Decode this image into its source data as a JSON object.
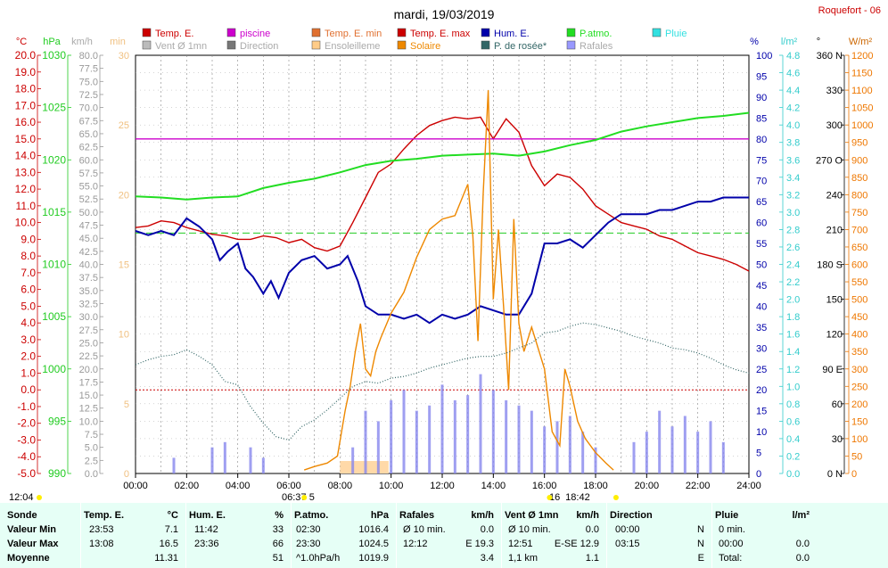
{
  "title": "mardi, 19/03/2019",
  "station": "Roquefort - 06",
  "legend": [
    {
      "label": "Temp. E.",
      "color": "#cc0000",
      "style": "box"
    },
    {
      "label": "piscine",
      "color": "#cc00cc",
      "style": "box"
    },
    {
      "label": "Temp. E. min",
      "color": "#e07030",
      "style": "box"
    },
    {
      "label": "Temp. E. max",
      "color": "#cc0000",
      "style": "box"
    },
    {
      "label": "Hum. E.",
      "color": "#0000aa",
      "style": "box"
    },
    {
      "label": "P.atmo.",
      "color": "#22dd22",
      "style": "box"
    },
    {
      "label": "Pluie",
      "color": "#33e0e0",
      "style": "box"
    },
    {
      "label": "Vent Ø 1mn",
      "color": "#bbbbbb",
      "style": "grey"
    },
    {
      "label": "Direction",
      "color": "#777777",
      "style": "grey"
    },
    {
      "label": "Ensoleilleme",
      "color": "#ffcc88",
      "style": "grey"
    },
    {
      "label": "Solaire",
      "color": "#ee8800",
      "style": "box"
    },
    {
      "label": "P. de rosée*",
      "color": "#336666",
      "style": "box"
    },
    {
      "label": "Rafales",
      "color": "#9999ff",
      "style": "grey"
    }
  ],
  "axes_units": {
    "temp": "°C",
    "pressure": "hPa",
    "wind": "km/h",
    "minutes": "min",
    "pct": "%",
    "rain": "l/m²",
    "dir": "°",
    "solar": "W/m²"
  },
  "axes_labels": {
    "temp": [
      "20.0",
      "19.0",
      "18.0",
      "17.0",
      "16.0",
      "15.0",
      "14.0",
      "13.0",
      "12.0",
      "11.0",
      "10.0",
      "9.0",
      "8.0",
      "7.0",
      "6.0",
      "5.0",
      "4.0",
      "3.0",
      "2.0",
      "1.0",
      "0.0",
      "-1.0",
      "-2.0",
      "-3.0",
      "-4.0",
      "-5.0"
    ],
    "pressure": [
      "1030",
      "1025",
      "1020",
      "1015",
      "1010",
      "1005",
      "1000",
      "995",
      "990"
    ],
    "wind": [
      "80.0",
      "77.5",
      "75.0",
      "72.5",
      "70.0",
      "67.5",
      "65.0",
      "62.5",
      "60.0",
      "57.5",
      "55.0",
      "52.5",
      "50.0",
      "47.5",
      "45.0",
      "42.5",
      "40.0",
      "37.5",
      "35.0",
      "32.5",
      "30.0",
      "27.5",
      "25.0",
      "22.5",
      "20.0",
      "17.5",
      "15.0",
      "12.5",
      "10.0",
      "7.5",
      "5.0",
      "2.5",
      "0.0"
    ],
    "minutes": [
      "30",
      "25",
      "20",
      "15",
      "10",
      "5",
      "0"
    ],
    "pct": [
      "100",
      "95",
      "90",
      "85",
      "80",
      "75",
      "70",
      "65",
      "60",
      "55",
      "50",
      "45",
      "40",
      "35",
      "30",
      "25",
      "20",
      "15",
      "10",
      "5",
      "0"
    ],
    "rain": [
      "4.8",
      "4.6",
      "4.4",
      "4.2",
      "4.0",
      "3.8",
      "3.6",
      "3.4",
      "3.2",
      "3.0",
      "2.8",
      "2.6",
      "2.4",
      "2.2",
      "2.0",
      "1.8",
      "1.6",
      "1.4",
      "1.2",
      "1.0",
      "0.8",
      "0.6",
      "0.4",
      "0.2",
      "0.0"
    ],
    "dir": [
      "360 N",
      "330",
      "300",
      "270 O",
      "240",
      "210",
      "180 S",
      "150",
      "120",
      "90 E",
      "60",
      "30",
      "0 N"
    ],
    "solar": [
      "1200",
      "1150",
      "1100",
      "1050",
      "1000",
      "950",
      "900",
      "850",
      "800",
      "750",
      "700",
      "650",
      "600",
      "550",
      "500",
      "450",
      "400",
      "350",
      "300",
      "250",
      "200",
      "150",
      "100",
      "50",
      "0"
    ]
  },
  "x_ticks": [
    "00:00",
    "02:00",
    "04:00",
    "06:00",
    "08:00",
    "10:00",
    "12:00",
    "14:00",
    "16:00",
    "18:00",
    "20:00",
    "22:00",
    "24:00"
  ],
  "sun_labels": {
    "sunrise_left": "12:04",
    "sunrise": "06:37",
    "sunset_left": "16",
    "sunset": "18:42",
    "mid": "5"
  },
  "chart_data": {
    "type": "line",
    "x_unit": "hour",
    "xlim": [
      0,
      24
    ],
    "series": [
      {
        "name": "Temp. E.",
        "axis": "temp",
        "color": "#cc0000",
        "x": [
          0,
          0.5,
          1,
          1.5,
          2,
          2.5,
          3,
          3.5,
          4,
          4.5,
          5,
          5.5,
          6,
          6.5,
          7,
          7.5,
          8,
          8.5,
          9,
          9.5,
          10,
          10.5,
          11,
          11.5,
          12,
          12.5,
          13,
          13.5,
          14,
          14.5,
          15,
          15.5,
          16,
          16.5,
          17,
          17.5,
          18,
          18.5,
          19,
          19.5,
          20,
          20.5,
          21,
          21.5,
          22,
          22.5,
          23,
          23.5,
          24
        ],
        "y": [
          9.7,
          9.8,
          10.1,
          10.0,
          9.7,
          9.5,
          9.3,
          9.2,
          9.0,
          9.0,
          9.2,
          9.1,
          8.8,
          9.0,
          8.5,
          8.3,
          8.6,
          10.0,
          11.5,
          13.0,
          13.5,
          14.4,
          15.2,
          15.8,
          16.1,
          16.3,
          16.2,
          16.3,
          15.0,
          16.2,
          15.4,
          13.4,
          12.2,
          12.9,
          12.7,
          12.0,
          11.0,
          10.5,
          10.0,
          9.8,
          9.6,
          9.2,
          9.0,
          8.6,
          8.2,
          8.0,
          7.8,
          7.5,
          7.1
        ]
      },
      {
        "name": "piscine",
        "axis": "minutes",
        "color": "#cc00cc",
        "x": [
          0,
          24
        ],
        "y": [
          24,
          24
        ]
      },
      {
        "name": "P.atmo.",
        "axis": "pressure",
        "color": "#22dd22",
        "x": [
          0,
          1,
          2,
          3,
          4,
          5,
          6,
          7,
          8,
          9,
          10,
          11,
          12,
          13,
          14,
          15,
          16,
          17,
          18,
          19,
          20,
          21,
          22,
          23,
          24
        ],
        "y": [
          1016.5,
          1016.4,
          1016.2,
          1016.4,
          1016.5,
          1017.3,
          1017.8,
          1018.2,
          1018.8,
          1019.5,
          1019.9,
          1020.1,
          1020.4,
          1020.5,
          1020.6,
          1020.4,
          1020.8,
          1021.4,
          1021.9,
          1022.7,
          1023.2,
          1023.6,
          1024.0,
          1024.2,
          1024.5
        ]
      },
      {
        "name": "Hum. E.",
        "axis": "pct",
        "color": "#0000aa",
        "x": [
          0,
          0.5,
          1,
          1.5,
          2,
          2.5,
          3,
          3.3,
          3.6,
          4,
          4.3,
          4.6,
          5,
          5.3,
          5.6,
          6,
          6.5,
          7,
          7.5,
          8,
          8.3,
          8.7,
          9,
          9.5,
          10,
          10.5,
          11,
          11.5,
          12,
          12.5,
          13,
          13.5,
          14,
          14.5,
          15,
          15.5,
          16,
          16.5,
          17,
          17.5,
          18,
          18.5,
          19,
          19.5,
          20,
          20.5,
          21,
          21.5,
          22,
          22.5,
          23,
          23.5,
          24
        ],
        "y": [
          58,
          57,
          58,
          57,
          61,
          59,
          56,
          51,
          53,
          55,
          49,
          47,
          43,
          46,
          42,
          48,
          51,
          52,
          49,
          50,
          52,
          46,
          40,
          38,
          38,
          37,
          38,
          36,
          38,
          37,
          38,
          40,
          39,
          38,
          38,
          43,
          55,
          55,
          56,
          54,
          57,
          60,
          62,
          62,
          62,
          63,
          63,
          64,
          65,
          65,
          66,
          66,
          66
        ]
      },
      {
        "name": "Solaire",
        "axis": "solar",
        "color": "#ee8800",
        "x": [
          6.6,
          7.0,
          7.5,
          7.9,
          8.2,
          8.4,
          8.6,
          8.8,
          9.0,
          9.2,
          9.4,
          9.6,
          10.0,
          10.5,
          11.0,
          11.5,
          12.0,
          12.5,
          13.0,
          13.2,
          13.4,
          13.6,
          13.8,
          14.0,
          14.2,
          14.4,
          14.6,
          14.8,
          15.0,
          15.2,
          15.5,
          16.0,
          16.3,
          16.6,
          16.8,
          17.0,
          17.3,
          17.6,
          18.0,
          18.4,
          18.7
        ],
        "y": [
          10,
          20,
          30,
          50,
          180,
          250,
          350,
          430,
          300,
          280,
          350,
          390,
          460,
          520,
          620,
          700,
          730,
          740,
          830,
          680,
          380,
          800,
          1100,
          500,
          700,
          480,
          240,
          730,
          430,
          350,
          420,
          300,
          120,
          80,
          300,
          250,
          150,
          100,
          60,
          30,
          10
        ]
      },
      {
        "name": "P. de rosée*",
        "axis": "temp",
        "color": "#336666",
        "x": [
          0,
          0.5,
          1,
          1.5,
          2,
          2.5,
          3,
          3.5,
          4,
          4.5,
          5,
          5.5,
          6,
          6.5,
          7,
          7.5,
          8,
          8.5,
          9,
          9.5,
          10,
          10.5,
          11,
          11.5,
          12,
          12.5,
          13,
          13.5,
          14,
          14.5,
          15,
          15.5,
          16,
          16.5,
          17,
          17.5,
          18,
          18.5,
          19,
          19.5,
          20,
          20.5,
          21,
          21.5,
          22,
          22.5,
          23,
          23.5,
          24
        ],
        "y": [
          1.5,
          1.8,
          2.0,
          2.1,
          2.4,
          2.0,
          1.5,
          0.5,
          0.3,
          -1.0,
          -2.0,
          -2.8,
          -3.0,
          -2.2,
          -1.8,
          -1.2,
          -0.5,
          0.2,
          0.5,
          0.4,
          0.7,
          0.8,
          1.0,
          1.3,
          1.5,
          1.7,
          1.9,
          2.0,
          2.0,
          2.2,
          2.5,
          2.8,
          3.4,
          3.5,
          3.8,
          4.0,
          3.9,
          3.7,
          3.5,
          3.2,
          3.0,
          2.8,
          2.5,
          2.4,
          2.2,
          1.9,
          1.5,
          1.2,
          1.0
        ]
      }
    ],
    "gusts": {
      "name": "Rafales",
      "axis": "wind",
      "color": "#8888ee",
      "x": [
        1.5,
        3,
        3.5,
        4.5,
        5,
        8.5,
        9,
        9.5,
        10,
        10.5,
        11,
        11.5,
        12,
        12.5,
        13,
        13.5,
        14,
        14.5,
        15,
        15.5,
        16,
        16.5,
        17,
        17.5,
        18,
        19.5,
        20,
        20.5,
        21,
        21.5,
        22,
        22.5,
        23
      ],
      "y": [
        3,
        5,
        6,
        5,
        3,
        5,
        12,
        10,
        14,
        16,
        12,
        13,
        17,
        14,
        15,
        19,
        16,
        14,
        13,
        12,
        9,
        10,
        11,
        8,
        5,
        6,
        8,
        12,
        9,
        11,
        8,
        10,
        6
      ]
    },
    "ylim": {
      "temp": [
        -5,
        20
      ],
      "pressure": [
        990,
        1030
      ],
      "wind": [
        0,
        80
      ],
      "pct": [
        0,
        100
      ],
      "solar": [
        0,
        1200
      ]
    },
    "grid": true
  },
  "summary": {
    "headers": {
      "sonde": "Sonde",
      "temp": "Temp. E.",
      "temp_u": "°C",
      "hum": "Hum. E.",
      "hum_u": "%",
      "pat": "P.atmo.",
      "pat_u": "hPa",
      "raf": "Rafales",
      "raf_u": "km/h",
      "vent": "Vent Ø 1mn",
      "vent_u": "km/h",
      "dir": "Direction",
      "pluie": "Pluie",
      "pluie_u": "l/m²"
    },
    "rows": [
      {
        "label": "Valeur Min",
        "temp_t": "23:53",
        "temp_v": "7.1",
        "hum_t": "11:42",
        "hum_v": "33",
        "pat_t": "02:30",
        "pat_v": "1016.4",
        "raf_t": "Ø 10 min.",
        "raf_v": "0.0",
        "vent_t": "Ø 10 min.",
        "vent_v": "0.0",
        "dir_t": "00:00",
        "dir_v": "N",
        "pluie_t": "0 min.",
        "pluie_v": ""
      },
      {
        "label": "Valeur Max",
        "temp_t": "13:08",
        "temp_v": "16.5",
        "hum_t": "23:36",
        "hum_v": "66",
        "pat_t": "23:30",
        "pat_v": "1024.5",
        "raf_t": "12:12",
        "raf_v": "E 19.3",
        "vent_t": "12:51",
        "vent_v": "E-SE 12.9",
        "dir_t": "03:15",
        "dir_v": "N",
        "pluie_t": "00:00",
        "pluie_v": "0.0"
      },
      {
        "label": "Moyenne",
        "temp_t": "",
        "temp_v": "11.31",
        "hum_t": "",
        "hum_v": "51",
        "pat_t": "^1.0hPa/h",
        "pat_v": "1019.9",
        "raf_t": "",
        "raf_v": "3.4",
        "vent_t": "1,1 km",
        "vent_v": "1.1",
        "dir_t": "",
        "dir_v": "E",
        "pluie_t": "Total:",
        "pluie_v": "0.0"
      }
    ]
  }
}
